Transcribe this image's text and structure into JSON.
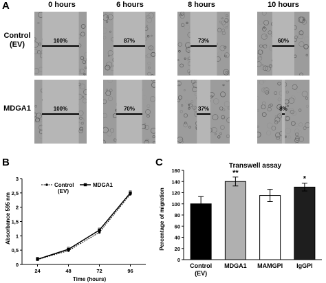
{
  "panel_labels": {
    "a": "A",
    "b": "B",
    "c": "C"
  },
  "panel_a": {
    "time_headers": [
      "0 hours",
      "6 hours",
      "8 hours",
      "10 hours"
    ],
    "rows": [
      {
        "label_line1": "Control",
        "label_line2": "(EV)",
        "percents": [
          "100%",
          "87%",
          "73%",
          "60%"
        ],
        "closure": [
          0.0,
          0.13,
          0.27,
          0.4
        ]
      },
      {
        "label_line1": "MDGA1",
        "label_line2": "",
        "percents": [
          "100%",
          "70%",
          "37%",
          "8%"
        ],
        "closure": [
          0.0,
          0.3,
          0.63,
          0.92
        ]
      }
    ]
  },
  "chart_data": [
    {
      "type": "line",
      "xlabel": "Time (hours)",
      "ylabel": "Absorbance 595 nm",
      "x": [
        24,
        48,
        72,
        96
      ],
      "xlim": [
        12,
        108
      ],
      "ylim": [
        0,
        3
      ],
      "yticks": [
        "0",
        "0,5",
        "1",
        "1,5",
        "2",
        "2,5",
        "3"
      ],
      "xticks": [
        "24",
        "48",
        "72",
        "96"
      ],
      "legend_placement": "top-left",
      "series": [
        {
          "name": "Control (EV)",
          "legend_line1": "Control",
          "legend_line2": "(EV)",
          "values": [
            0.17,
            0.48,
            1.12,
            2.45
          ]
        },
        {
          "name": "MDGA1",
          "values": [
            0.18,
            0.53,
            1.2,
            2.5
          ]
        }
      ]
    },
    {
      "type": "bar",
      "title": "Transwell assay",
      "ylabel": "Percentage of migration",
      "ylim": [
        0,
        160
      ],
      "yticks": [
        "0",
        "20",
        "40",
        "60",
        "80",
        "100",
        "120",
        "140",
        "160"
      ],
      "categories": [
        "Control (EV)",
        "MDGA1",
        "MAMGPI",
        "IgGPI"
      ],
      "category_line1": [
        "Control",
        "MDGA1",
        "MAMGPI",
        "IgGPI"
      ],
      "category_line2": [
        "(EV)",
        "",
        "",
        ""
      ],
      "values": [
        100,
        140,
        115,
        130
      ],
      "errors": [
        13,
        8,
        11,
        7
      ],
      "significance": [
        "",
        "**",
        "",
        "*"
      ],
      "bar_colors": [
        "#000000",
        "#b0b0b0",
        "#ffffff",
        "#1e1e1e"
      ]
    }
  ]
}
